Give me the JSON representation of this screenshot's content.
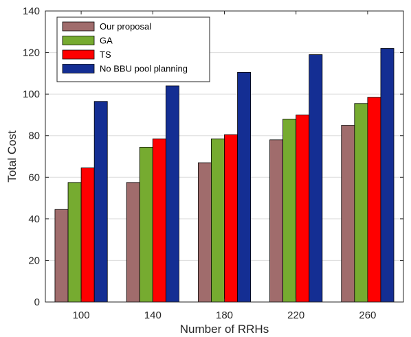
{
  "chart_data": {
    "type": "bar",
    "categories": [
      "100",
      "140",
      "180",
      "220",
      "260"
    ],
    "series": [
      {
        "name": "Our proposal",
        "color": "#a06c6c",
        "values": [
          44.5,
          57.5,
          67,
          78,
          85
        ]
      },
      {
        "name": "GA",
        "color": "#76ab30",
        "values": [
          57.5,
          74.5,
          78.5,
          88,
          95.5
        ]
      },
      {
        "name": "TS",
        "color": "#fe0000",
        "values": [
          64.5,
          78.5,
          80.5,
          90,
          98.5
        ]
      },
      {
        "name": "No BBU pool planning",
        "color": "#142e93",
        "values": [
          96.5,
          104,
          110.5,
          119,
          122
        ]
      }
    ],
    "title": "",
    "xlabel": "Number of RRHs",
    "ylabel": "Total Cost",
    "ylim": [
      0,
      140
    ],
    "yticks": [
      0,
      20,
      40,
      60,
      80,
      100,
      120,
      140
    ],
    "grid": true,
    "legend_position": "top-left"
  }
}
